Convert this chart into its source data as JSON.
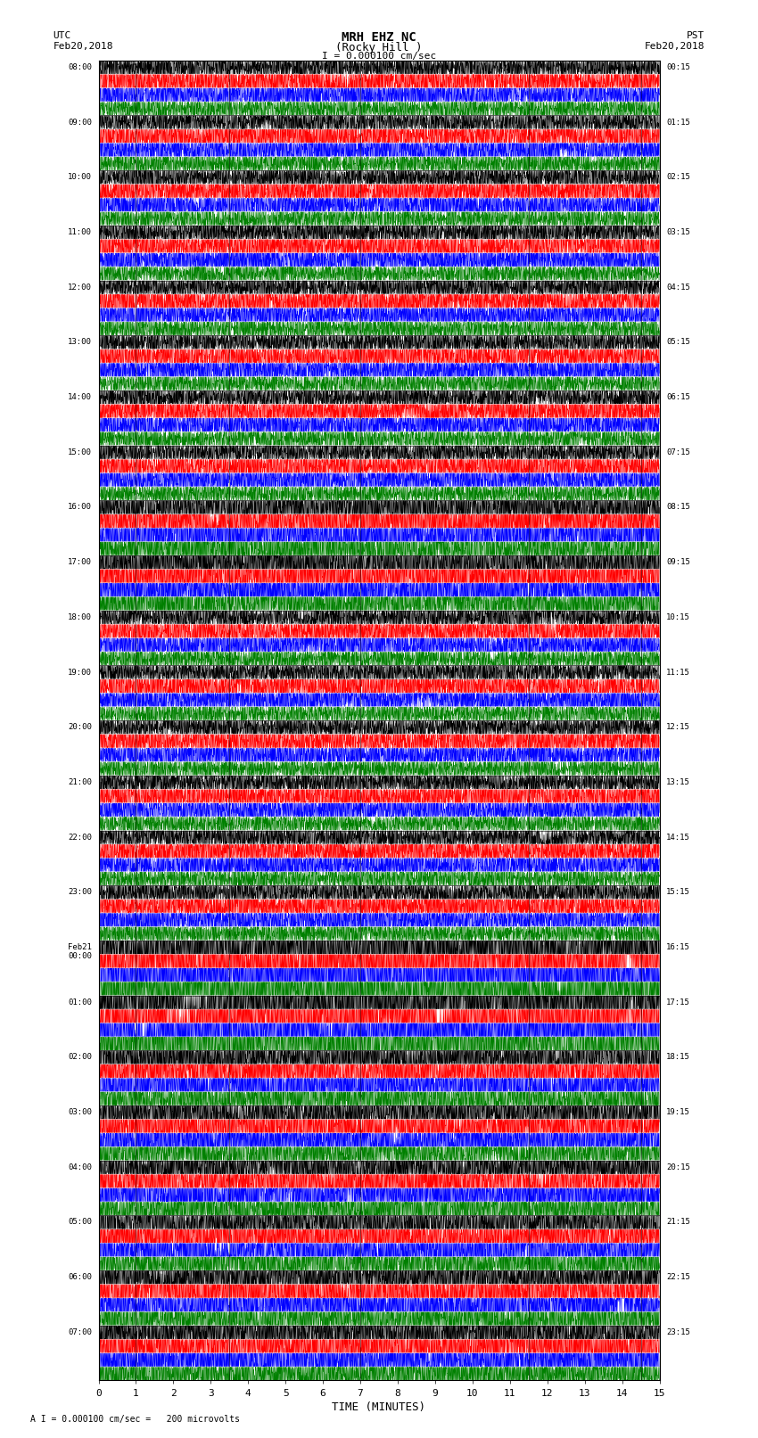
{
  "title_line1": "MRH EHZ NC",
  "title_line2": "(Rocky Hill )",
  "scale_label": "I = 0.000100 cm/sec",
  "bottom_label": "A I = 0.000100 cm/sec =   200 microvolts",
  "xlabel": "TIME (MINUTES)",
  "utc_label": "UTC",
  "utc_date": "Feb20,2018",
  "pst_label": "PST",
  "pst_date": "Feb20,2018",
  "left_times": [
    "08:00",
    "09:00",
    "10:00",
    "11:00",
    "12:00",
    "13:00",
    "14:00",
    "15:00",
    "16:00",
    "17:00",
    "18:00",
    "19:00",
    "20:00",
    "21:00",
    "22:00",
    "23:00",
    "Feb21\n00:00",
    "01:00",
    "02:00",
    "03:00",
    "04:00",
    "05:00",
    "06:00",
    "07:00"
  ],
  "right_times": [
    "00:15",
    "01:15",
    "02:15",
    "03:15",
    "04:15",
    "05:15",
    "06:15",
    "07:15",
    "08:15",
    "09:15",
    "10:15",
    "11:15",
    "12:15",
    "13:15",
    "14:15",
    "15:15",
    "16:15",
    "17:15",
    "18:15",
    "19:15",
    "20:15",
    "21:15",
    "22:15",
    "23:15"
  ],
  "x_ticks": [
    0,
    1,
    2,
    3,
    4,
    5,
    6,
    7,
    8,
    9,
    10,
    11,
    12,
    13,
    14,
    15
  ],
  "colors_cycle": [
    "black",
    "red",
    "blue",
    "green"
  ],
  "background_color": "white",
  "n_rows": 24,
  "traces_per_row": 4,
  "minutes": 15,
  "noise_seed": 42,
  "spike_x_positions": [
    1.0,
    3.5,
    7.0,
    11.5,
    14.5
  ],
  "large_amp_rows": [
    8,
    9,
    16,
    17,
    18,
    19,
    20,
    21,
    22,
    23
  ],
  "huge_amp_rows": [
    16,
    17
  ]
}
